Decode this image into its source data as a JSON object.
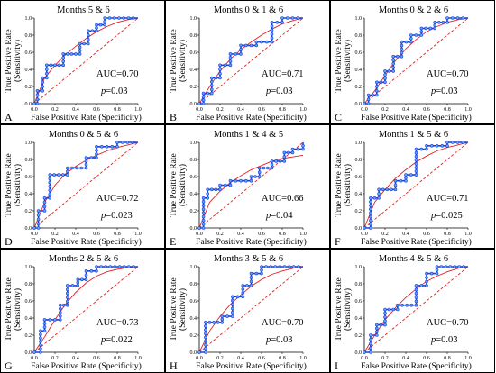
{
  "xlabel": "False Positive Rate (Specificity)",
  "ylabel_line1": "True Positive Rate",
  "ylabel_line2": "(Sensitivity)",
  "x_ticks": [
    "0.0",
    "0.2",
    "0.4",
    "0.6",
    "0.8",
    "1.0"
  ],
  "y_ticks": [
    "0.0",
    "0.2",
    "0.4",
    "0.6",
    "0.8",
    "1.0"
  ],
  "colors": {
    "empirical": "#1f3fd8",
    "marker_fill": "#5aa8ff",
    "fitted": "#e02020",
    "chance": "#e02020",
    "axis": "#000000"
  },
  "chart_data": [
    {
      "letter": "A",
      "title": "Months 5 & 6",
      "auc": "AUC=0.70",
      "p": "=0.03",
      "type": "line",
      "xlim": [
        0,
        1
      ],
      "ylim": [
        0,
        1
      ],
      "empirical": [
        [
          0,
          0
        ],
        [
          0.03,
          0
        ],
        [
          0.03,
          0.15
        ],
        [
          0.08,
          0.15
        ],
        [
          0.08,
          0.3
        ],
        [
          0.12,
          0.3
        ],
        [
          0.12,
          0.45
        ],
        [
          0.28,
          0.45
        ],
        [
          0.28,
          0.58
        ],
        [
          0.44,
          0.58
        ],
        [
          0.44,
          0.7
        ],
        [
          0.52,
          0.7
        ],
        [
          0.52,
          0.85
        ],
        [
          0.6,
          0.85
        ],
        [
          0.6,
          0.92
        ],
        [
          0.68,
          0.92
        ],
        [
          0.68,
          1.0
        ],
        [
          1,
          1
        ]
      ],
      "fitted": [
        [
          0,
          0
        ],
        [
          0.1,
          0.3
        ],
        [
          0.2,
          0.45
        ],
        [
          0.3,
          0.57
        ],
        [
          0.4,
          0.67
        ],
        [
          0.5,
          0.76
        ],
        [
          0.6,
          0.84
        ],
        [
          0.7,
          0.9
        ],
        [
          0.8,
          0.95
        ],
        [
          0.9,
          0.98
        ],
        [
          1,
          1
        ]
      ]
    },
    {
      "letter": "B",
      "title": "Months 0 & 1 & 6",
      "auc": "AUC=0.71",
      "p": "=0.03",
      "type": "line",
      "xlim": [
        0,
        1
      ],
      "ylim": [
        0,
        1
      ],
      "empirical": [
        [
          0,
          0
        ],
        [
          0.04,
          0
        ],
        [
          0.04,
          0.12
        ],
        [
          0.12,
          0.12
        ],
        [
          0.12,
          0.3
        ],
        [
          0.2,
          0.3
        ],
        [
          0.2,
          0.45
        ],
        [
          0.3,
          0.45
        ],
        [
          0.3,
          0.58
        ],
        [
          0.4,
          0.58
        ],
        [
          0.4,
          0.68
        ],
        [
          0.55,
          0.68
        ],
        [
          0.55,
          0.72
        ],
        [
          0.7,
          0.72
        ],
        [
          0.7,
          0.95
        ],
        [
          0.8,
          0.95
        ],
        [
          0.8,
          1.0
        ],
        [
          1,
          1
        ]
      ],
      "fitted": [
        [
          0,
          0
        ],
        [
          0.1,
          0.2
        ],
        [
          0.2,
          0.38
        ],
        [
          0.3,
          0.52
        ],
        [
          0.4,
          0.63
        ],
        [
          0.5,
          0.72
        ],
        [
          0.6,
          0.8
        ],
        [
          0.7,
          0.87
        ],
        [
          0.8,
          0.93
        ],
        [
          0.9,
          0.97
        ],
        [
          1,
          1
        ]
      ]
    },
    {
      "letter": "C",
      "title": "Months 0 & 2 & 6",
      "auc": "AUC=0.70",
      "p": "=0.03",
      "type": "line",
      "xlim": [
        0,
        1
      ],
      "ylim": [
        0,
        1
      ],
      "empirical": [
        [
          0,
          0
        ],
        [
          0.04,
          0
        ],
        [
          0.04,
          0.1
        ],
        [
          0.12,
          0.1
        ],
        [
          0.12,
          0.25
        ],
        [
          0.2,
          0.25
        ],
        [
          0.2,
          0.38
        ],
        [
          0.28,
          0.38
        ],
        [
          0.28,
          0.55
        ],
        [
          0.36,
          0.55
        ],
        [
          0.36,
          0.72
        ],
        [
          0.45,
          0.72
        ],
        [
          0.45,
          0.8
        ],
        [
          0.55,
          0.8
        ],
        [
          0.55,
          0.88
        ],
        [
          0.68,
          0.88
        ],
        [
          0.68,
          0.95
        ],
        [
          0.8,
          0.95
        ],
        [
          0.8,
          1.0
        ],
        [
          1,
          1
        ]
      ],
      "fitted": [
        [
          0,
          0
        ],
        [
          0.1,
          0.15
        ],
        [
          0.2,
          0.33
        ],
        [
          0.3,
          0.5
        ],
        [
          0.4,
          0.64
        ],
        [
          0.5,
          0.75
        ],
        [
          0.6,
          0.84
        ],
        [
          0.7,
          0.9
        ],
        [
          0.8,
          0.95
        ],
        [
          0.9,
          0.98
        ],
        [
          1,
          1
        ]
      ]
    },
    {
      "letter": "D",
      "title": "Months 0 & 5 & 6",
      "auc": "AUC=0.72",
      "p": "=0.023",
      "type": "line",
      "xlim": [
        0,
        1
      ],
      "ylim": [
        0,
        1
      ],
      "empirical": [
        [
          0,
          0
        ],
        [
          0.04,
          0
        ],
        [
          0.04,
          0.2
        ],
        [
          0.1,
          0.2
        ],
        [
          0.1,
          0.35
        ],
        [
          0.15,
          0.35
        ],
        [
          0.15,
          0.62
        ],
        [
          0.32,
          0.62
        ],
        [
          0.32,
          0.7
        ],
        [
          0.5,
          0.7
        ],
        [
          0.5,
          0.82
        ],
        [
          0.6,
          0.82
        ],
        [
          0.6,
          0.95
        ],
        [
          0.8,
          0.95
        ],
        [
          0.8,
          1.0
        ],
        [
          1,
          1
        ]
      ],
      "fitted": [
        [
          0,
          0
        ],
        [
          0.1,
          0.3
        ],
        [
          0.2,
          0.5
        ],
        [
          0.3,
          0.63
        ],
        [
          0.4,
          0.72
        ],
        [
          0.5,
          0.79
        ],
        [
          0.6,
          0.85
        ],
        [
          0.7,
          0.9
        ],
        [
          0.8,
          0.94
        ],
        [
          0.9,
          0.97
        ],
        [
          1,
          1
        ]
      ]
    },
    {
      "letter": "E",
      "title": "Months 1 & 4 & 5",
      "auc": "AUC=0.66",
      "p": "=0.04",
      "type": "line",
      "xlim": [
        0,
        1
      ],
      "ylim": [
        0,
        1
      ],
      "empirical": [
        [
          0,
          0
        ],
        [
          0.04,
          0
        ],
        [
          0.04,
          0.35
        ],
        [
          0.08,
          0.35
        ],
        [
          0.08,
          0.45
        ],
        [
          0.2,
          0.45
        ],
        [
          0.2,
          0.5
        ],
        [
          0.3,
          0.5
        ],
        [
          0.3,
          0.55
        ],
        [
          0.5,
          0.55
        ],
        [
          0.5,
          0.6
        ],
        [
          0.58,
          0.6
        ],
        [
          0.58,
          0.7
        ],
        [
          0.7,
          0.7
        ],
        [
          0.7,
          0.78
        ],
        [
          0.82,
          0.78
        ],
        [
          0.82,
          0.88
        ],
        [
          0.9,
          0.88
        ],
        [
          0.9,
          0.92
        ],
        [
          1,
          0.92
        ],
        [
          1,
          1
        ]
      ],
      "fitted": [
        [
          0,
          0
        ],
        [
          0.1,
          0.3
        ],
        [
          0.2,
          0.43
        ],
        [
          0.3,
          0.53
        ],
        [
          0.4,
          0.61
        ],
        [
          0.5,
          0.68
        ],
        [
          0.6,
          0.73
        ],
        [
          0.7,
          0.78
        ],
        [
          0.8,
          0.81
        ],
        [
          0.9,
          0.83
        ],
        [
          1,
          0.85
        ]
      ]
    },
    {
      "letter": "F",
      "title": "Months 1 & 5 & 6",
      "auc": "AUC=0.71",
      "p": "=0.025",
      "type": "line",
      "xlim": [
        0,
        1
      ],
      "ylim": [
        0,
        1
      ],
      "empirical": [
        [
          0,
          0
        ],
        [
          0.06,
          0
        ],
        [
          0.06,
          0.35
        ],
        [
          0.14,
          0.35
        ],
        [
          0.14,
          0.45
        ],
        [
          0.3,
          0.45
        ],
        [
          0.3,
          0.55
        ],
        [
          0.4,
          0.55
        ],
        [
          0.4,
          0.62
        ],
        [
          0.5,
          0.62
        ],
        [
          0.5,
          0.92
        ],
        [
          0.6,
          0.92
        ],
        [
          0.6,
          0.96
        ],
        [
          0.8,
          0.96
        ],
        [
          0.8,
          1.0
        ],
        [
          1,
          1
        ]
      ],
      "fitted": [
        [
          0,
          0
        ],
        [
          0.1,
          0.3
        ],
        [
          0.2,
          0.45
        ],
        [
          0.3,
          0.58
        ],
        [
          0.4,
          0.68
        ],
        [
          0.5,
          0.77
        ],
        [
          0.6,
          0.84
        ],
        [
          0.7,
          0.9
        ],
        [
          0.8,
          0.94
        ],
        [
          0.9,
          0.97
        ],
        [
          1,
          1
        ]
      ]
    },
    {
      "letter": "G",
      "title": "Months 2 & 5 & 6",
      "auc": "AUC=0.73",
      "p": "=0.022",
      "type": "line",
      "xlim": [
        0,
        1
      ],
      "ylim": [
        0,
        1
      ],
      "empirical": [
        [
          0,
          0
        ],
        [
          0.06,
          0
        ],
        [
          0.06,
          0.25
        ],
        [
          0.1,
          0.25
        ],
        [
          0.1,
          0.38
        ],
        [
          0.25,
          0.38
        ],
        [
          0.25,
          0.55
        ],
        [
          0.32,
          0.55
        ],
        [
          0.32,
          0.78
        ],
        [
          0.42,
          0.78
        ],
        [
          0.42,
          0.85
        ],
        [
          0.5,
          0.85
        ],
        [
          0.5,
          0.95
        ],
        [
          0.6,
          0.95
        ],
        [
          0.6,
          1.0
        ],
        [
          1,
          1
        ]
      ],
      "fitted": [
        [
          0,
          0
        ],
        [
          0.1,
          0.18
        ],
        [
          0.2,
          0.38
        ],
        [
          0.3,
          0.56
        ],
        [
          0.4,
          0.7
        ],
        [
          0.5,
          0.81
        ],
        [
          0.6,
          0.89
        ],
        [
          0.7,
          0.94
        ],
        [
          0.8,
          0.97
        ],
        [
          0.9,
          0.99
        ],
        [
          1,
          1
        ]
      ]
    },
    {
      "letter": "H",
      "title": "Months 3 & 5 & 6",
      "auc": "AUC=0.70",
      "p": "=0.03",
      "type": "line",
      "xlim": [
        0,
        1
      ],
      "ylim": [
        0,
        1
      ],
      "empirical": [
        [
          0,
          0
        ],
        [
          0.06,
          0
        ],
        [
          0.06,
          0.35
        ],
        [
          0.22,
          0.35
        ],
        [
          0.22,
          0.42
        ],
        [
          0.32,
          0.42
        ],
        [
          0.32,
          0.65
        ],
        [
          0.42,
          0.65
        ],
        [
          0.42,
          0.78
        ],
        [
          0.5,
          0.78
        ],
        [
          0.5,
          0.92
        ],
        [
          0.6,
          0.92
        ],
        [
          0.6,
          1.0
        ],
        [
          1,
          1
        ]
      ],
      "fitted": [
        [
          0,
          0
        ],
        [
          0.1,
          0.25
        ],
        [
          0.2,
          0.42
        ],
        [
          0.3,
          0.56
        ],
        [
          0.4,
          0.67
        ],
        [
          0.5,
          0.77
        ],
        [
          0.6,
          0.85
        ],
        [
          0.7,
          0.91
        ],
        [
          0.8,
          0.95
        ],
        [
          0.9,
          0.98
        ],
        [
          1,
          1
        ]
      ]
    },
    {
      "letter": "I",
      "title": "Months 4 & 5 & 6",
      "auc": "AUC=0.70",
      "p": "=0.03",
      "type": "line",
      "xlim": [
        0,
        1
      ],
      "ylim": [
        0,
        1
      ],
      "empirical": [
        [
          0,
          0
        ],
        [
          0.06,
          0
        ],
        [
          0.06,
          0.2
        ],
        [
          0.12,
          0.2
        ],
        [
          0.12,
          0.32
        ],
        [
          0.2,
          0.32
        ],
        [
          0.2,
          0.5
        ],
        [
          0.32,
          0.5
        ],
        [
          0.32,
          0.55
        ],
        [
          0.5,
          0.55
        ],
        [
          0.5,
          0.78
        ],
        [
          0.6,
          0.78
        ],
        [
          0.6,
          0.92
        ],
        [
          0.7,
          0.92
        ],
        [
          0.7,
          1.0
        ],
        [
          1,
          1
        ]
      ],
      "fitted": [
        [
          0,
          0
        ],
        [
          0.1,
          0.2
        ],
        [
          0.2,
          0.38
        ],
        [
          0.3,
          0.52
        ],
        [
          0.4,
          0.64
        ],
        [
          0.5,
          0.74
        ],
        [
          0.6,
          0.83
        ],
        [
          0.7,
          0.89
        ],
        [
          0.8,
          0.94
        ],
        [
          0.9,
          0.98
        ],
        [
          1,
          1
        ]
      ]
    }
  ]
}
